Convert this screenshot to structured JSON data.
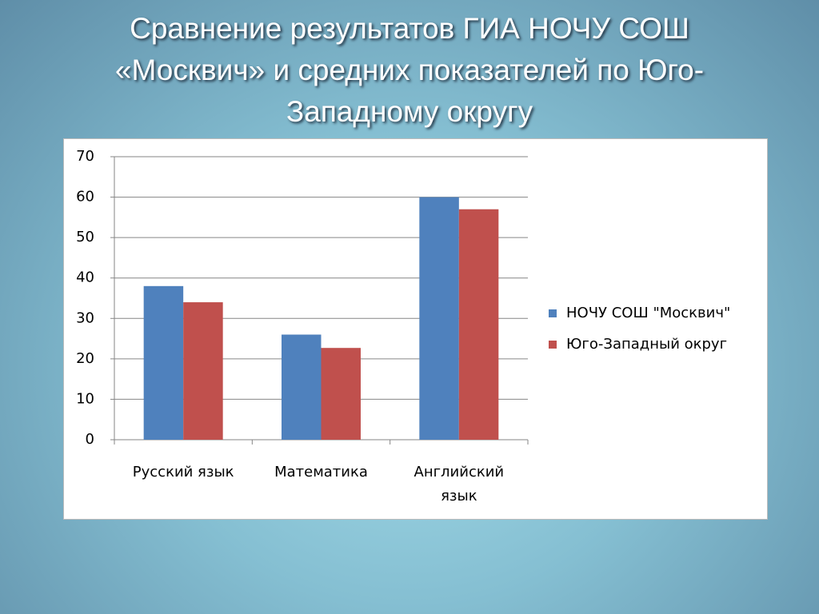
{
  "chart_data": {
    "type": "bar",
    "title": "Сравнение результатов ГИА НОЧУ СОШ «Москвич» и средних показателей по Юго-Западному округу",
    "categories": [
      "Русский язык",
      "Математика",
      "Английский язык"
    ],
    "series": [
      {
        "name": "НОЧУ СОШ \"Москвич\"",
        "color": "#4f81bd",
        "values": [
          38,
          26,
          60
        ]
      },
      {
        "name": "Юго-Западный округ",
        "color": "#c0504d",
        "values": [
          34,
          22.7,
          57
        ]
      }
    ],
    "ylim": [
      0,
      70
    ],
    "yticks": [
      0,
      10,
      20,
      30,
      40,
      50,
      60,
      70
    ],
    "grid": true,
    "legend": "right"
  }
}
